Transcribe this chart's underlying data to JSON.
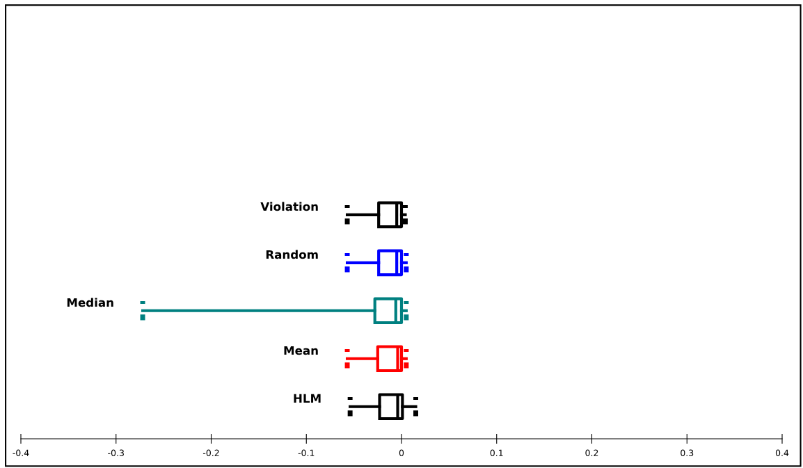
{
  "chart_data": {
    "type": "box",
    "orientation": "horizontal",
    "categories": [
      "Violation",
      "Random",
      "Median",
      "Mean",
      "HLM"
    ],
    "colors": [
      "#000000",
      "#0000ff",
      "#008080",
      "#ff0000",
      "#000000"
    ],
    "boxes": [
      {
        "low": -0.057,
        "q1": -0.024,
        "median": -0.005,
        "q3": 0.0,
        "high": 0.004
      },
      {
        "low": -0.057,
        "q1": -0.024,
        "median": -0.005,
        "q3": 0.0,
        "high": 0.005
      },
      {
        "low": -0.272,
        "q1": -0.028,
        "median": -0.006,
        "q3": 0.0,
        "high": 0.005
      },
      {
        "low": -0.057,
        "q1": -0.025,
        "median": -0.004,
        "q3": 0.0,
        "high": 0.005
      },
      {
        "low": -0.054,
        "q1": -0.023,
        "median": -0.004,
        "q3": 0.001,
        "high": 0.015
      }
    ],
    "xlim": [
      -0.4,
      0.4
    ],
    "xticks": [
      -0.4,
      -0.3,
      -0.2,
      -0.1,
      0,
      0.1,
      0.2,
      0.3,
      0.4
    ],
    "grid": false,
    "legend": false
  }
}
